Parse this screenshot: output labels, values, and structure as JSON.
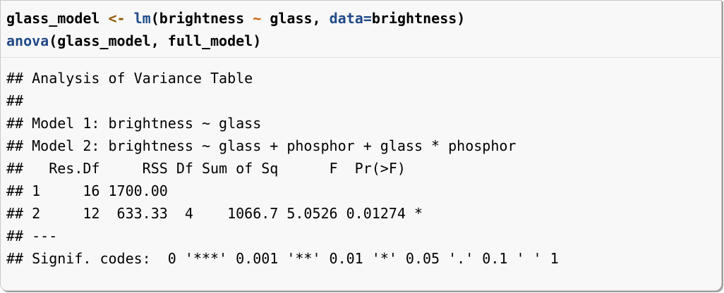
{
  "code": {
    "line1": {
      "var": "glass_model",
      "assign": "<-",
      "fn": "lm",
      "paren_open": "(",
      "lhs": "brightness",
      "tilde": "~",
      "rhs": "glass,",
      "arg_name": "data=",
      "arg_value": "brightness)"
    },
    "line2": {
      "fn": "anova",
      "args": "(glass_model, full_model)"
    }
  },
  "output": {
    "lines": [
      "## Analysis of Variance Table",
      "##",
      "## Model 1: brightness ~ glass",
      "## Model 2: brightness ~ glass + phosphor + glass * phosphor",
      "##   Res.Df     RSS Df Sum of Sq      F  Pr(>F)",
      "## 1     16 1700.00",
      "## 2     12  633.33  4    1066.7 5.0526 0.01274 *",
      "## ---",
      "## Signif. codes:  0 '***' 0.001 '**' 0.01 '*' 0.05 '.' 0.1 ' ' 1"
    ]
  }
}
